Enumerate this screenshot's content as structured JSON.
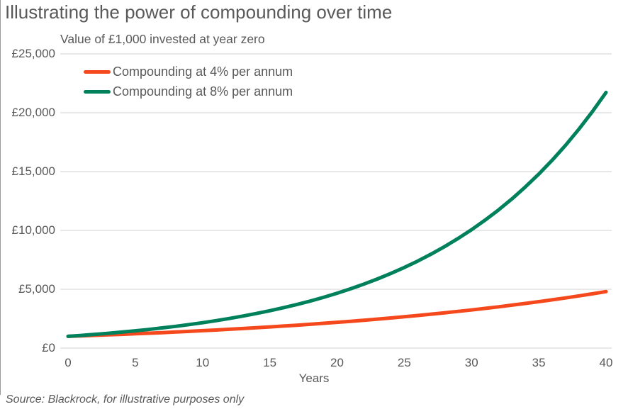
{
  "title": "Illustrating the power of compounding over time",
  "subtitle": "Value of £1,000 invested at year zero",
  "source": "Source: Blackrock, for illustrative purposes only",
  "colors": {
    "series_4pct": "#F5491D",
    "series_8pct": "#00815C",
    "grid": "#D9D9D9",
    "text": "#595959",
    "edge": "#9A9A9A"
  },
  "legend": [
    {
      "label": "Compounding at 4% per annum",
      "color": "#F5491D"
    },
    {
      "label": "Compounding at 8% per annum",
      "color": "#00815C"
    }
  ],
  "chart_data": {
    "type": "line",
    "title": "Illustrating the power of compounding over time",
    "subtitle": "Value of £1,000 invested at year zero",
    "xlabel": "Years",
    "ylabel": "",
    "xlim": [
      0,
      40
    ],
    "ylim": [
      0,
      25000
    ],
    "grid": "horizontal",
    "grid_color": "#D9D9D9",
    "legend_position": "top-left",
    "x": [
      0,
      1,
      2,
      3,
      4,
      5,
      6,
      7,
      8,
      9,
      10,
      11,
      12,
      13,
      14,
      15,
      16,
      17,
      18,
      19,
      20,
      21,
      22,
      23,
      24,
      25,
      26,
      27,
      28,
      29,
      30,
      31,
      32,
      33,
      34,
      35,
      36,
      37,
      38,
      39,
      40
    ],
    "x_ticks": [
      {
        "value": 0,
        "label": "0"
      },
      {
        "value": 5,
        "label": "5"
      },
      {
        "value": 10,
        "label": "10"
      },
      {
        "value": 15,
        "label": "15"
      },
      {
        "value": 20,
        "label": "20"
      },
      {
        "value": 25,
        "label": "25"
      },
      {
        "value": 30,
        "label": "30"
      },
      {
        "value": 35,
        "label": "35"
      },
      {
        "value": 40,
        "label": "40"
      }
    ],
    "y_ticks": [
      {
        "value": 0,
        "label": "£0"
      },
      {
        "value": 5000,
        "label": "£5,000"
      },
      {
        "value": 10000,
        "label": "£10,000"
      },
      {
        "value": 15000,
        "label": "£15,000"
      },
      {
        "value": 20000,
        "label": "£20,000"
      },
      {
        "value": 25000,
        "label": "£25,000"
      }
    ],
    "series": [
      {
        "id": "4pct",
        "name": "Compounding at 4% per annum",
        "color": "#F5491D",
        "values": [
          1000,
          1040,
          1082,
          1125,
          1170,
          1217,
          1265,
          1316,
          1369,
          1423,
          1480,
          1539,
          1601,
          1665,
          1732,
          1801,
          1873,
          1948,
          2026,
          2107,
          2191,
          2279,
          2370,
          2465,
          2563,
          2666,
          2772,
          2883,
          2999,
          3119,
          3243,
          3373,
          3508,
          3648,
          3794,
          3946,
          4104,
          4268,
          4439,
          4616,
          4801
        ]
      },
      {
        "id": "8pct",
        "name": "Compounding at 8% per annum",
        "color": "#00815C",
        "values": [
          1000,
          1080,
          1166,
          1260,
          1360,
          1469,
          1587,
          1714,
          1851,
          1999,
          2159,
          2332,
          2518,
          2720,
          2937,
          3172,
          3426,
          3700,
          3996,
          4316,
          4661,
          5034,
          5437,
          5871,
          6341,
          6848,
          7396,
          7988,
          8627,
          9317,
          10063,
          10868,
          11737,
          12676,
          13690,
          14785,
          15968,
          17246,
          18625,
          20115,
          21725
        ]
      }
    ]
  }
}
